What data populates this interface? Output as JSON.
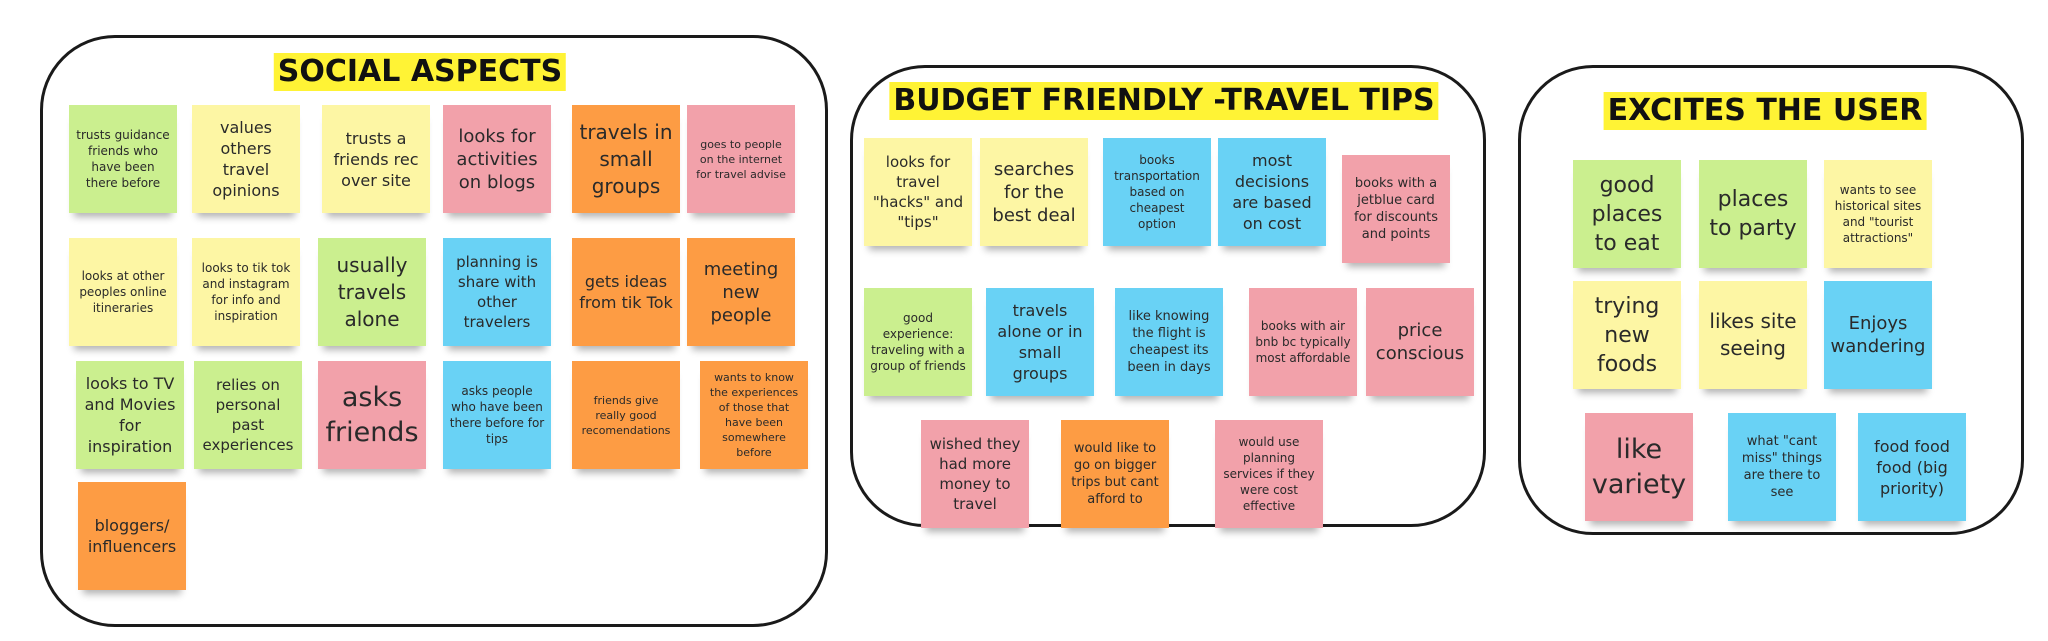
{
  "groups": {
    "social": {
      "title": "SOCIAL ASPECTS",
      "notes": [
        "trusts guidance friends who have been there before",
        "values others travel opinions",
        "trusts a friends rec over site",
        "looks for activities on blogs",
        "travels in small groups",
        "goes to people on the internet for travel advise",
        "looks at other peoples online itineraries",
        "looks to tik tok and instagram for info and inspiration",
        "usually travels alone",
        "planning is share with other travelers",
        "gets ideas from tik Tok",
        "meeting new people",
        "looks to TV and Movies for inspiration",
        "relies on personal past experiences",
        "asks friends",
        "asks people who have been there before for tips",
        "friends give really good recomendations",
        "wants to know the experiences of those that have been somewhere before",
        "bloggers/ influencers"
      ]
    },
    "budget": {
      "title": "BUDGET FRIENDLY -TRAVEL TIPS",
      "notes": [
        "looks for travel \"hacks\" and \"tips\"",
        "searches for the best deal",
        "books transportation based on cheapest option",
        "most decisions are based on cost",
        "books with a jetblue card for discounts and points",
        "good experience: traveling with a group of friends",
        "travels alone or in small groups",
        "like knowing the flight is cheapest its been in days",
        "books with air bnb bc typically most affordable",
        "price conscious",
        "wished they had more money to travel",
        "would like to go on bigger trips but cant afford to",
        "would use planning services if they were cost effective"
      ]
    },
    "excites": {
      "title": "EXCITES THE USER",
      "notes": [
        "good places to eat",
        "places to party",
        "wants to see historical sites and \"tourist attractions\"",
        "trying new foods",
        "likes site seeing",
        "Enjoys wandering",
        "like variety",
        "what \"cant miss\" things are there to see",
        "food food food (big priority)"
      ]
    }
  },
  "colors": {
    "green": "#cbef8f",
    "yellow": "#fdf6a4",
    "pink": "#f2a1aa",
    "orange": "#fd9c44",
    "blue": "#69d2f5",
    "title_highlight": "#fff335"
  }
}
